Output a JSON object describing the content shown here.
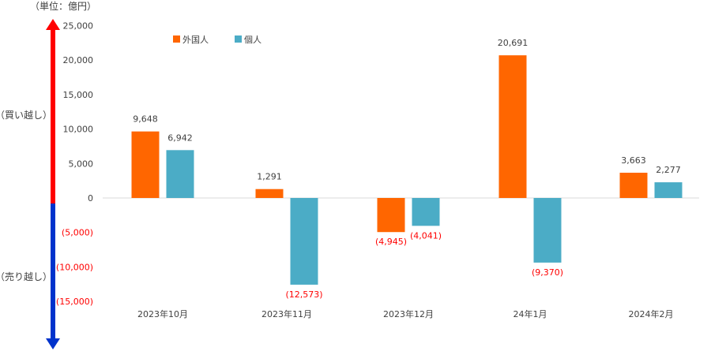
{
  "unit_label": "（単位：億円）",
  "side_labels": {
    "buy": "（買い越し）",
    "sell": "（売り越し）"
  },
  "colors": {
    "foreign": "#FF6600",
    "individual": "#4BACC6",
    "up_arrow": "#FF0000",
    "down_arrow": "#0033CC",
    "negative_text": "#FF0000",
    "text": "#404040",
    "axis": "#D9D9D9"
  },
  "chart_data": {
    "type": "bar",
    "categories": [
      "2023年10月",
      "2023年11月",
      "2023年12月",
      "24年1月",
      "2024年2月"
    ],
    "series": [
      {
        "name": "外国人",
        "color": "#FF6600",
        "values": [
          9648,
          1291,
          -4945,
          20691,
          3663
        ],
        "labels": [
          "9,648",
          "1,291",
          "(4,945)",
          "20,691",
          "3,663"
        ]
      },
      {
        "name": "個人",
        "color": "#4BACC6",
        "values": [
          6942,
          -12573,
          -4041,
          -9370,
          2277
        ],
        "labels": [
          "6,942",
          "(12,573)",
          "(4,041)",
          "(9,370)",
          "2,277"
        ]
      }
    ],
    "yticks": [
      25000,
      20000,
      15000,
      10000,
      5000,
      0,
      -5000,
      -10000,
      -15000
    ],
    "ytick_labels": [
      "25,000",
      "20,000",
      "15,000",
      "10,000",
      "5,000",
      "0",
      "(5,000)",
      "(10,000)",
      "(15,000)"
    ],
    "ylim": [
      -15000,
      25000
    ],
    "legend_position": "top-left",
    "grid": false
  }
}
